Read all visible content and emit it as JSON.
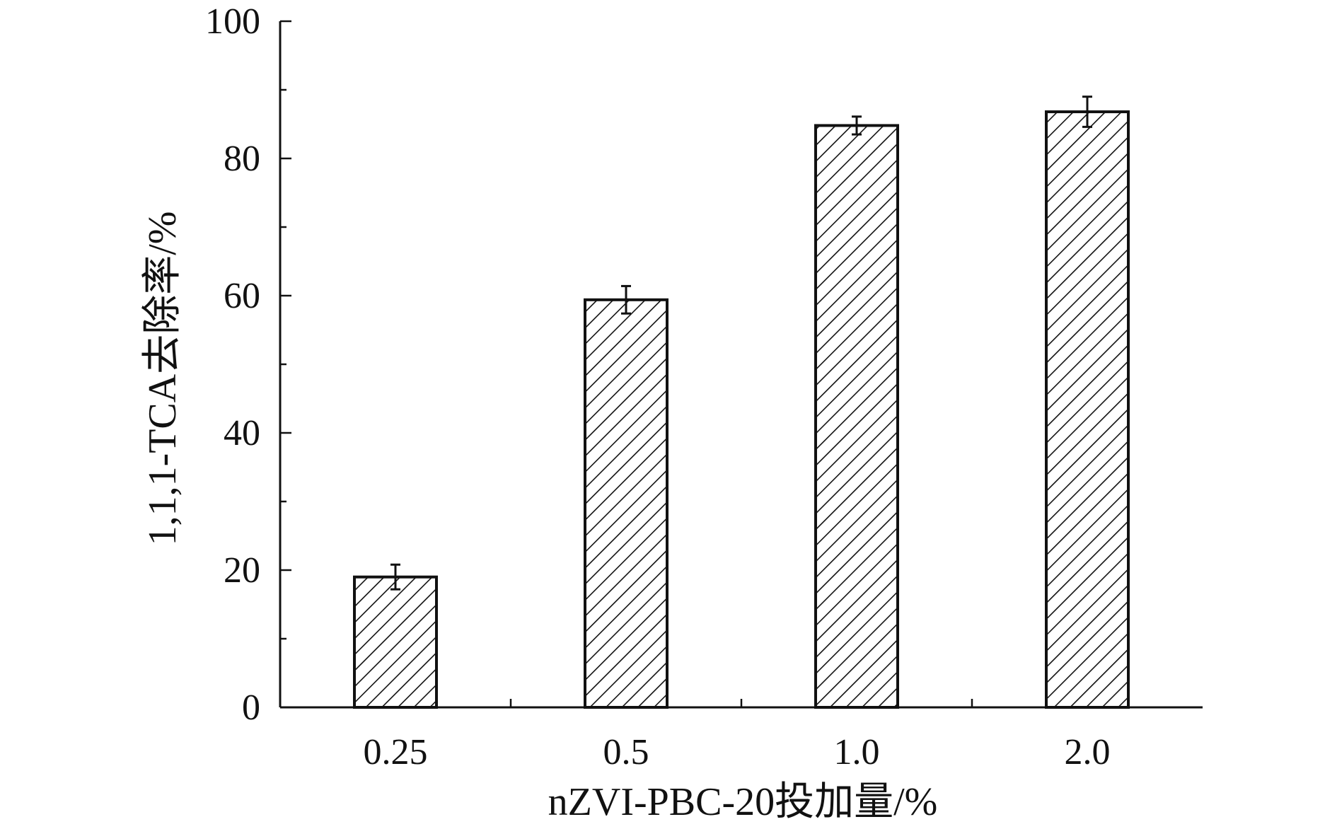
{
  "chart_data": {
    "type": "bar",
    "categories": [
      "0.25",
      "0.5",
      "1.0",
      "2.0"
    ],
    "values": [
      19,
      59.4,
      84.8,
      86.8
    ],
    "errors": [
      1.8,
      2.0,
      1.3,
      2.2
    ],
    "xlabel": "nZVI-PBC-20投加量/%",
    "ylabel": "1,1,1-TCA去除率/%",
    "ylim": [
      0,
      100
    ],
    "yticks": [
      "0",
      "20",
      "40",
      "60",
      "80",
      "100"
    ],
    "ytick_values": [
      0,
      20,
      40,
      60,
      80,
      100
    ],
    "bar_fill": "hatched",
    "bar_color": "#ffffff",
    "edge_color": "#111111",
    "grid": false
  }
}
